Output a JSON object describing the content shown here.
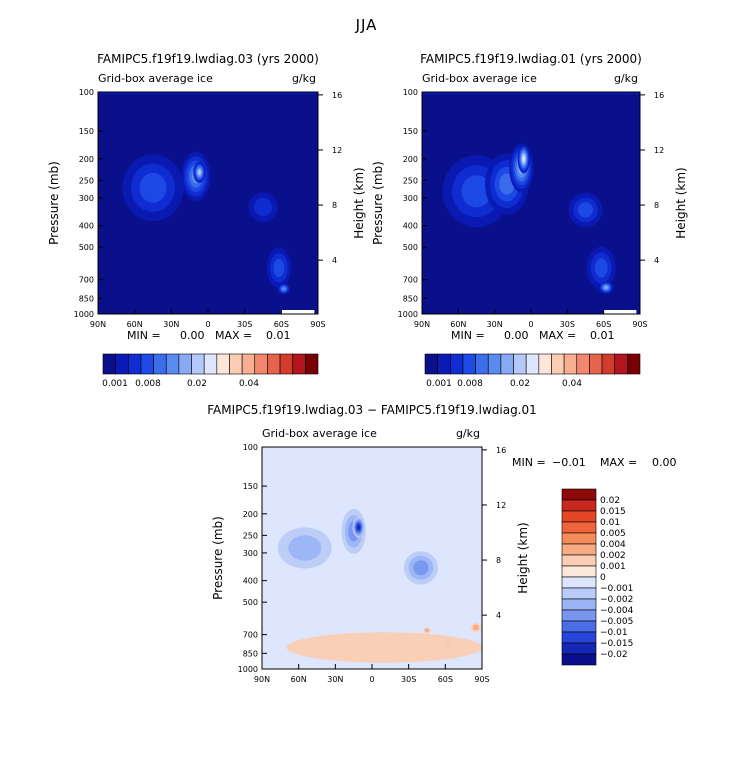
{
  "page_title": "JJA",
  "chart_data": [
    {
      "type": "heatmap",
      "title": "FAMIPC5.f19f19.lwdiag.03 (yrs 2000)",
      "subtitle_left": "Grid-box average ice",
      "subtitle_right": "g/kg",
      "ylabel": "Pressure (mb)",
      "ylabel_right": "Height (km)",
      "x_ticks": [
        "90N",
        "60N",
        "30N",
        "0",
        "30S",
        "60S",
        "90S"
      ],
      "x_values": [
        90,
        60,
        30,
        0,
        -30,
        -60,
        -90
      ],
      "xlim": [
        90,
        -90
      ],
      "y_ticks": [
        "100",
        "150",
        "200",
        "250",
        "300",
        "400",
        "500",
        "700",
        "850",
        "1000"
      ],
      "y_values": [
        100,
        150,
        200,
        250,
        300,
        400,
        500,
        700,
        850,
        1000
      ],
      "ylim": [
        100,
        1000
      ],
      "y_right_ticks": [
        "16",
        "12",
        "8",
        "4"
      ],
      "y_right_values": [
        16,
        12,
        8,
        4
      ],
      "min_label": "MIN =",
      "min_value": "0.00",
      "max_label": "MAX =",
      "max_value": "0.01",
      "colorbar_labels": [
        "0.001",
        "0.008",
        "0.02",
        "0.04"
      ],
      "colorbar_colors": [
        "#0a0f8c",
        "#0a1ab4",
        "#0f2dd2",
        "#1e4be6",
        "#3c6eeb",
        "#5a8cf0",
        "#87aaf5",
        "#b4c8fa",
        "#dde6fc",
        "#fde6d7",
        "#fbcdb4",
        "#f8af91",
        "#f2876e",
        "#e6644b",
        "#d23c2d",
        "#b4141e",
        "#780005"
      ],
      "blobs": [
        {
          "lat": 45,
          "p": 270,
          "w": 25,
          "h": 180,
          "level": 3
        },
        {
          "lat": 10,
          "p": 240,
          "w": 12,
          "h": 120,
          "level": 5
        },
        {
          "lat": 7,
          "p": 230,
          "w": 5,
          "h": 50,
          "level": 7
        },
        {
          "lat": -45,
          "p": 330,
          "w": 12,
          "h": 100,
          "level": 2
        },
        {
          "lat": -58,
          "p": 620,
          "w": 10,
          "h": 260,
          "level": 3
        },
        {
          "lat": -62,
          "p": 770,
          "w": 5,
          "h": 90,
          "level": 5
        }
      ]
    },
    {
      "type": "heatmap",
      "title": "FAMIPC5.f19f19.lwdiag.01 (yrs 2000)",
      "subtitle_left": "Grid-box average ice",
      "subtitle_right": "g/kg",
      "ylabel": "Pressure (mb)",
      "ylabel_right": "Height (km)",
      "x_ticks": [
        "90N",
        "60N",
        "30N",
        "0",
        "30S",
        "60S",
        "90S"
      ],
      "x_values": [
        90,
        60,
        30,
        0,
        -30,
        -60,
        -90
      ],
      "xlim": [
        90,
        -90
      ],
      "y_ticks": [
        "100",
        "150",
        "200",
        "250",
        "300",
        "400",
        "500",
        "700",
        "850",
        "1000"
      ],
      "y_values": [
        100,
        150,
        200,
        250,
        300,
        400,
        500,
        700,
        850,
        1000
      ],
      "ylim": [
        100,
        1000
      ],
      "y_right_ticks": [
        "16",
        "12",
        "8",
        "4"
      ],
      "y_right_values": [
        16,
        12,
        8,
        4
      ],
      "min_label": "MIN =",
      "min_value": "0.00",
      "max_label": "MAX =",
      "max_value": "0.01",
      "colorbar_labels": [
        "0.001",
        "0.008",
        "0.02",
        "0.04"
      ],
      "colorbar_colors": [
        "#0a0f8c",
        "#0a1ab4",
        "#0f2dd2",
        "#1e4be6",
        "#3c6eeb",
        "#5a8cf0",
        "#87aaf5",
        "#b4c8fa",
        "#dde6fc",
        "#fde6d7",
        "#fbcdb4",
        "#f8af91",
        "#f2876e",
        "#e6644b",
        "#d23c2d",
        "#b4141e",
        "#780005"
      ],
      "blobs": [
        {
          "lat": 45,
          "p": 280,
          "w": 28,
          "h": 200,
          "level": 3
        },
        {
          "lat": 20,
          "p": 260,
          "w": 18,
          "h": 160,
          "level": 4
        },
        {
          "lat": 8,
          "p": 220,
          "w": 10,
          "h": 110,
          "level": 6
        },
        {
          "lat": 6,
          "p": 200,
          "w": 5,
          "h": 60,
          "level": 8
        },
        {
          "lat": -45,
          "p": 340,
          "w": 14,
          "h": 120,
          "level": 3
        },
        {
          "lat": -58,
          "p": 620,
          "w": 12,
          "h": 270,
          "level": 3
        },
        {
          "lat": -62,
          "p": 760,
          "w": 6,
          "h": 100,
          "level": 6
        }
      ]
    },
    {
      "type": "heatmap",
      "title": "FAMIPC5.f19f19.lwdiag.03 − FAMIPC5.f19f19.lwdiag.01",
      "subtitle_left": "Grid-box average ice",
      "subtitle_right": "g/kg",
      "ylabel": "Pressure (mb)",
      "ylabel_right": "Height (km)",
      "x_ticks": [
        "90N",
        "60N",
        "30N",
        "0",
        "30S",
        "60S",
        "90S"
      ],
      "x_values": [
        90,
        60,
        30,
        0,
        -30,
        -60,
        -90
      ],
      "xlim": [
        90,
        -90
      ],
      "y_ticks": [
        "100",
        "150",
        "200",
        "250",
        "300",
        "400",
        "500",
        "700",
        "850",
        "1000"
      ],
      "y_values": [
        100,
        150,
        200,
        250,
        300,
        400,
        500,
        700,
        850,
        1000
      ],
      "ylim": [
        100,
        1000
      ],
      "y_right_ticks": [
        "16",
        "12",
        "8",
        "4"
      ],
      "y_right_values": [
        16,
        12,
        8,
        4
      ],
      "min_label": "MIN =",
      "min_value": "−0.01",
      "max_label": "MAX =",
      "max_value": "0.00",
      "colorbar_labels": [
        "0.02",
        "0.015",
        "0.01",
        "0.005",
        "0.004",
        "0.002",
        "0.001",
        "0",
        "−0.001",
        "−0.002",
        "−0.004",
        "−0.005",
        "−0.01",
        "−0.015",
        "−0.02"
      ],
      "colorbar_colors": [
        "#8c0a0a",
        "#c8281e",
        "#e64628",
        "#f0643c",
        "#f48c5a",
        "#f8aa82",
        "#fbcdb4",
        "#fde8dc",
        "#dde6fc",
        "#b9ccf8",
        "#9bb4f4",
        "#7896ef",
        "#4b6ee6",
        "#2846dc",
        "#1428b4",
        "#0a0f8c"
      ],
      "base_color": "#dde6fc",
      "blobs": [
        {
          "lat": 55,
          "p": 285,
          "w": 22,
          "h": 120,
          "level": -2
        },
        {
          "lat": 15,
          "p": 240,
          "w": 10,
          "h": 110,
          "level": -3
        },
        {
          "lat": 11,
          "p": 230,
          "w": 5,
          "h": 50,
          "level": -6
        },
        {
          "lat": -40,
          "p": 350,
          "w": 14,
          "h": 120,
          "level": -3
        },
        {
          "lat": -62,
          "p": 770,
          "w": 3,
          "h": 90,
          "level": -4
        },
        {
          "lat": -10,
          "p": 800,
          "w": 80,
          "h": 250,
          "level": 1
        },
        {
          "lat": -45,
          "p": 670,
          "w": 3,
          "h": 40,
          "level": 2
        },
        {
          "lat": -85,
          "p": 650,
          "w": 4,
          "h": 60,
          "level": 2
        }
      ]
    }
  ]
}
